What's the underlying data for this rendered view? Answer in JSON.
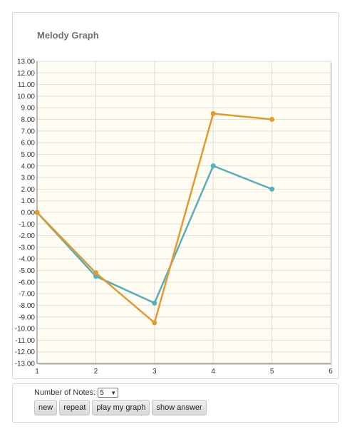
{
  "app": {
    "title": "Melody Graph"
  },
  "controls": {
    "num_notes_label": "Number of Notes:",
    "num_notes_value": "5",
    "buttons": [
      "new",
      "repeat",
      "play my graph",
      "show answer"
    ]
  },
  "chart_data": {
    "type": "line",
    "title": "Melody Graph",
    "xlim": [
      1,
      6
    ],
    "ylim": [
      -13,
      13
    ],
    "x_ticks": [
      "1",
      "2",
      "3",
      "4",
      "5",
      "6"
    ],
    "y_ticks": [
      "13.00",
      "12.00",
      "11.00",
      "10.00",
      "9.00",
      "8.00",
      "7.00",
      "6.00",
      "5.00",
      "4.00",
      "3.00",
      "2.00",
      "1.00",
      "0.00",
      "-1.00",
      "-2.00",
      "-3.00",
      "-4.00",
      "-5.00",
      "-6.00",
      "-7.00",
      "-8.00",
      "-9.00",
      "-10.00",
      "-11.00",
      "-12.00",
      "-13.00"
    ],
    "grid": true,
    "series": [
      {
        "color": "#5aaebb",
        "x": [
          1,
          2,
          3,
          4,
          5
        ],
        "y": [
          0,
          -5.5,
          -7.8,
          4,
          2
        ]
      },
      {
        "color": "#e09b30",
        "x": [
          1,
          2,
          3,
          4,
          5
        ],
        "y": [
          0,
          -5.2,
          -9.5,
          8.5,
          8
        ]
      }
    ],
    "colors": {
      "plot_bg": "#fffcf2",
      "grid": "#dedede",
      "axis": "#777777"
    }
  }
}
